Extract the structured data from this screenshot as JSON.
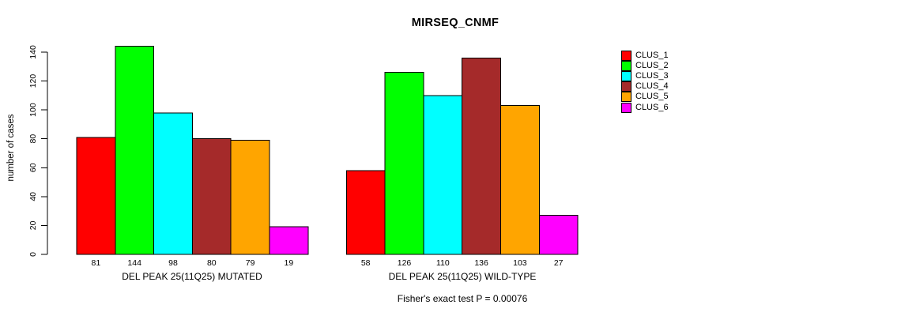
{
  "chart_data": {
    "type": "bar",
    "title": "MIRSEQ_CNMF",
    "ylabel": "number of cases",
    "xlabel": "",
    "ylim": [
      0,
      150
    ],
    "yticks": [
      0,
      20,
      40,
      60,
      80,
      100,
      120,
      140
    ],
    "grid": false,
    "legend_position": "right",
    "bar_border_color": "#000000",
    "text_color": "#000000",
    "background_color": "#FFFFFF",
    "categories": [
      "CLUS_1",
      "CLUS_2",
      "CLUS_3",
      "CLUS_4",
      "CLUS_5",
      "CLUS_6"
    ],
    "series_colors": [
      "#FF0000",
      "#00FF00",
      "#00FFFF",
      "#A52A2A",
      "#FFA500",
      "#FF00FF"
    ],
    "groups": [
      {
        "label": "DEL PEAK 25(11Q25) MUTATED",
        "values": [
          81,
          144,
          98,
          80,
          79,
          19
        ]
      },
      {
        "label": "DEL PEAK 25(11Q25) WILD-TYPE",
        "values": [
          58,
          126,
          110,
          136,
          103,
          27
        ]
      }
    ],
    "legend": [
      {
        "label": "CLUS_1",
        "color": "#FF0000"
      },
      {
        "label": "CLUS_2",
        "color": "#00FF00"
      },
      {
        "label": "CLUS_3",
        "color": "#00FFFF"
      },
      {
        "label": "CLUS_4",
        "color": "#A52A2A"
      },
      {
        "label": "CLUS_5",
        "color": "#FFA500"
      },
      {
        "label": "CLUS_6",
        "color": "#FF00FF"
      }
    ],
    "footnote": "Fisher's exact test P = 0.00076"
  }
}
